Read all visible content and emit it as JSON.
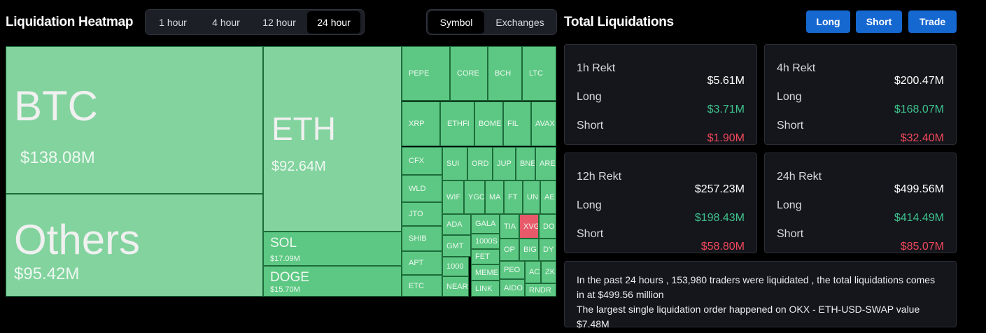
{
  "header": {
    "title": "Liquidation Heatmap",
    "time_tabs": [
      "1 hour",
      "4 hour",
      "12 hour",
      "24 hour"
    ],
    "view_tabs": [
      "Symbol",
      "Exchanges"
    ]
  },
  "heatmap": {
    "tiles": [
      {
        "label": "BTC",
        "value": "$138.08M"
      },
      {
        "label": "Others",
        "value": "$95.42M"
      },
      {
        "label": "ETH",
        "value": "$92.64M"
      },
      {
        "label": "SOL",
        "value": "$17.09M"
      },
      {
        "label": "DOGE",
        "value": "$15.70M"
      },
      {
        "label": "PEPE"
      },
      {
        "label": "CORE"
      },
      {
        "label": "BCH"
      },
      {
        "label": "LTC"
      },
      {
        "label": "XRP"
      },
      {
        "label": "ETHFI"
      },
      {
        "label": "BOME"
      },
      {
        "label": "FIL"
      },
      {
        "label": "AVAX"
      },
      {
        "label": "CFX"
      },
      {
        "label": "WLD"
      },
      {
        "label": "JTO"
      },
      {
        "label": "SHIB"
      },
      {
        "label": "APT"
      },
      {
        "label": "ETC"
      },
      {
        "label": "SUI"
      },
      {
        "label": "ORD"
      },
      {
        "label": "JUP"
      },
      {
        "label": "BNE"
      },
      {
        "label": "ARE"
      },
      {
        "label": "WIF"
      },
      {
        "label": "YGC"
      },
      {
        "label": "MA"
      },
      {
        "label": "FT"
      },
      {
        "label": "UN"
      },
      {
        "label": "AE"
      },
      {
        "label": "ADA"
      },
      {
        "label": "GALA"
      },
      {
        "label": "TIA"
      },
      {
        "label": "XVG"
      },
      {
        "label": "DO"
      },
      {
        "label": "GMT"
      },
      {
        "label": "1000S"
      },
      {
        "label": "OP"
      },
      {
        "label": "BIG"
      },
      {
        "label": "DY"
      },
      {
        "label": "1000"
      },
      {
        "label": "FET"
      },
      {
        "label": "PEO"
      },
      {
        "label": "AC"
      },
      {
        "label": "ZK"
      },
      {
        "label": "NEAR"
      },
      {
        "label": "MEME"
      },
      {
        "label": "LINK"
      },
      {
        "label": "AIDO"
      },
      {
        "label": "RNDR"
      }
    ]
  },
  "summary": {
    "title": "Total Liquidations",
    "buttons": [
      "Long",
      "Short",
      "Trade"
    ],
    "cards": [
      {
        "title": "1h Rekt",
        "total": "$5.61M",
        "rows": [
          {
            "label": "Long",
            "value": "$3.71M"
          },
          {
            "label": "Short",
            "value": "$1.90M"
          }
        ]
      },
      {
        "title": "4h Rekt",
        "total": "$200.47M",
        "rows": [
          {
            "label": "Long",
            "value": "$168.07M"
          },
          {
            "label": "Short",
            "value": "$32.40M"
          }
        ]
      },
      {
        "title": "12h Rekt",
        "total": "$257.23M",
        "rows": [
          {
            "label": "Long",
            "value": "$198.43M"
          },
          {
            "label": "Short",
            "value": "$58.80M"
          }
        ]
      },
      {
        "title": "24h Rekt",
        "total": "$499.56M",
        "rows": [
          {
            "label": "Long",
            "value": "$414.49M"
          },
          {
            "label": "Short",
            "value": "$85.07M"
          }
        ]
      }
    ],
    "note": [
      "In the past 24 hours , 153,980 traders were liquidated , the total liquidations comes in at $499.56 million",
      "The largest single liquidation order happened on OKX - ETH-USD-SWAP value $7.48M"
    ]
  }
}
